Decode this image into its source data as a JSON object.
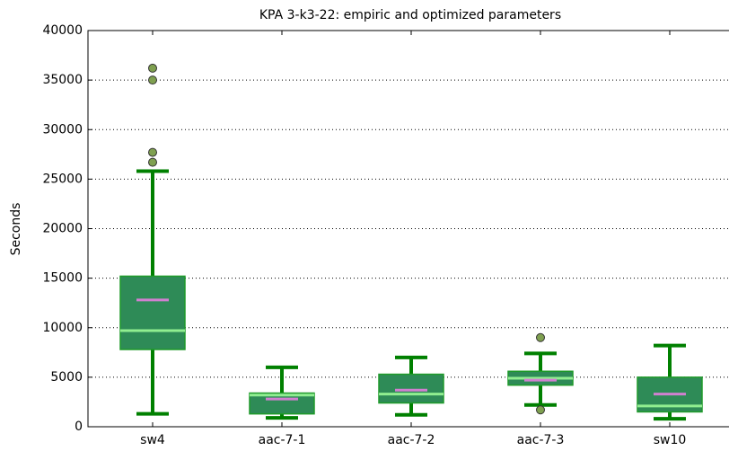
{
  "chart_data": {
    "type": "box",
    "title": "KPA 3-k3-22: empiric and optimized parameters",
    "y_label": "Seconds",
    "categories": [
      "sw4",
      "aac-7-1",
      "aac-7-2",
      "aac-7-3",
      "sw10"
    ],
    "boxes": [
      {
        "whislo": 1300,
        "q1": 7800,
        "med": 9700,
        "mean": 12800,
        "q3": 15200,
        "whishi": 25800,
        "fliers": [
          26700,
          27700,
          35000,
          36200
        ]
      },
      {
        "whislo": 900,
        "q1": 1300,
        "med": 3200,
        "mean": 2800,
        "q3": 3400,
        "whishi": 6000,
        "fliers": []
      },
      {
        "whislo": 1200,
        "q1": 2400,
        "med": 3300,
        "mean": 3700,
        "q3": 5300,
        "whishi": 7000,
        "fliers": []
      },
      {
        "whislo": 2200,
        "q1": 4200,
        "med": 4900,
        "mean": 4700,
        "q3": 5600,
        "whishi": 7400,
        "fliers": [
          1700,
          9000
        ]
      },
      {
        "whislo": 800,
        "q1": 1500,
        "med": 2100,
        "mean": 3300,
        "q3": 5000,
        "whishi": 8200,
        "fliers": []
      }
    ],
    "box_color": "#2e8b57",
    "edge_color": "#1f9a2a",
    "whisker_color": "#008000",
    "median_color": "#90ee90",
    "mean_color": "#d080d0",
    "flier_color": "#7fa050",
    "ylim": [
      0,
      40000
    ],
    "yticks": [
      0,
      5000,
      10000,
      15000,
      20000,
      25000,
      30000,
      35000,
      40000
    ],
    "grid": true
  }
}
